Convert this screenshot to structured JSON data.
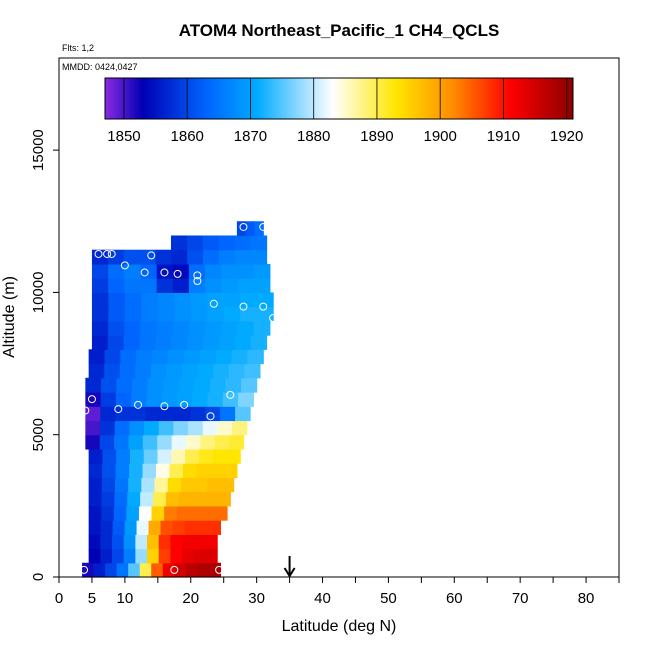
{
  "chart_data": {
    "type": "heatmap",
    "title": "ATOM4 Northeast_Pacific_1 CH4_QCLS",
    "annotations": {
      "flights": "Flts: 1,2",
      "dates": "MMDD: 0424,0427"
    },
    "xlabel": "Latitude (deg N)",
    "ylabel": "Altitude (m)",
    "xlim": [
      0,
      85
    ],
    "ylim": [
      0,
      18500
    ],
    "x_ticks_major": [
      "0",
      "5",
      "10",
      "20",
      "30",
      "40",
      "50",
      "60",
      "70",
      "80"
    ],
    "x_tick_values": [
      0,
      5,
      10,
      20,
      30,
      40,
      50,
      60,
      70,
      80
    ],
    "x_minor_ticks": [
      15,
      25,
      35,
      45,
      55,
      65,
      75,
      85
    ],
    "y_ticks": [
      "0",
      "5000",
      "10000",
      "15000"
    ],
    "y_tick_values": [
      0,
      5000,
      10000,
      15000
    ],
    "colorbar": {
      "min": 1847,
      "max": 1921,
      "labels": [
        "1850",
        "1860",
        "1870",
        "1880",
        "1890",
        "1900",
        "1910",
        "1920"
      ],
      "label_values": [
        1850,
        1860,
        1870,
        1880,
        1890,
        1900,
        1910,
        1920
      ],
      "colors": [
        "#8b2be2",
        "#0000b4",
        "#0064ff",
        "#00aaff",
        "#ffffff",
        "#ffe600",
        "#ff8c00",
        "#ff0000",
        "#8b0000"
      ],
      "color_values": [
        1847,
        1853,
        1863,
        1871,
        1883,
        1893,
        1902,
        1911,
        1921
      ]
    },
    "latitude_marker": {
      "lat": 35,
      "symbol": "down-arrow"
    },
    "curtain": {
      "rows": [
        {
          "alt": 250,
          "x0": 3.5,
          "x1": 24.5,
          "values": [
            1852,
            1856,
            1860,
            1865,
            1875,
            1890,
            1905,
            1912,
            1915,
            1917,
            1918,
            1918
          ]
        },
        {
          "alt": 750,
          "x0": 4.5,
          "x1": 24.0,
          "values": [
            1853,
            1856,
            1860,
            1866,
            1878,
            1895,
            1907,
            1911,
            1913,
            1914,
            1914
          ]
        },
        {
          "alt": 1250,
          "x0": 4.5,
          "x1": 24.0,
          "values": [
            1854,
            1857,
            1861,
            1868,
            1880,
            1897,
            1908,
            1911,
            1912,
            1912,
            1912
          ]
        },
        {
          "alt": 1750,
          "x0": 4.5,
          "x1": 24.5,
          "values": [
            1855,
            1857,
            1862,
            1869,
            1882,
            1899,
            1906,
            1907,
            1908,
            1908,
            1908
          ]
        },
        {
          "alt": 2250,
          "x0": 4.5,
          "x1": 25.5,
          "values": [
            1855,
            1858,
            1863,
            1870,
            1883,
            1895,
            1903,
            1904,
            1904,
            1904,
            1904
          ]
        },
        {
          "alt": 2750,
          "x0": 4.5,
          "x1": 26.0,
          "values": [
            1856,
            1859,
            1864,
            1871,
            1880,
            1890,
            1897,
            1898,
            1898,
            1898,
            1898
          ]
        },
        {
          "alt": 3250,
          "x0": 4.5,
          "x1": 26.5,
          "values": [
            1856,
            1860,
            1865,
            1872,
            1879,
            1887,
            1894,
            1896,
            1896,
            1897,
            1897
          ]
        },
        {
          "alt": 3750,
          "x0": 4.5,
          "x1": 27.0,
          "values": [
            1857,
            1861,
            1866,
            1872,
            1878,
            1884,
            1890,
            1894,
            1895,
            1895,
            1895
          ]
        },
        {
          "alt": 4250,
          "x0": 4.5,
          "x1": 27.5,
          "values": [
            1856,
            1861,
            1866,
            1872,
            1876,
            1881,
            1886,
            1890,
            1892,
            1893,
            1893
          ]
        },
        {
          "alt": 4750,
          "x0": 4.0,
          "x1": 28.0,
          "values": [
            1852,
            1860,
            1865,
            1870,
            1874,
            1878,
            1882,
            1885,
            1888,
            1890,
            1891
          ]
        },
        {
          "alt": 5250,
          "x0": 4.0,
          "x1": 28.5,
          "values": [
            1850,
            1858,
            1864,
            1868,
            1871,
            1874,
            1877,
            1879,
            1882,
            1885,
            1888
          ]
        },
        {
          "alt": 5750,
          "x0": 4.0,
          "x1": 29.0,
          "values": [
            1849,
            1857,
            1858,
            1858,
            1857,
            1857,
            1857,
            1858,
            1860,
            1865,
            1875
          ]
        },
        {
          "alt": 6250,
          "x0": 4.0,
          "x1": 29.5,
          "values": [
            1852,
            1859,
            1863,
            1866,
            1868,
            1869,
            1870,
            1871,
            1872,
            1874,
            1877
          ]
        },
        {
          "alt": 6750,
          "x0": 4.0,
          "x1": 30.0,
          "values": [
            1857,
            1861,
            1864,
            1866,
            1868,
            1869,
            1870,
            1871,
            1872,
            1873,
            1875
          ]
        },
        {
          "alt": 7250,
          "x0": 4.5,
          "x1": 30.5,
          "values": [
            1857,
            1861,
            1864,
            1866,
            1868,
            1869,
            1870,
            1871,
            1872,
            1873,
            1874
          ]
        },
        {
          "alt": 7750,
          "x0": 4.5,
          "x1": 31.0,
          "values": [
            1856,
            1860,
            1864,
            1866,
            1867,
            1868,
            1869,
            1870,
            1871,
            1872,
            1873
          ]
        },
        {
          "alt": 8250,
          "x0": 5.0,
          "x1": 31.5,
          "values": [
            1856,
            1860,
            1863,
            1865,
            1866,
            1867,
            1868,
            1869,
            1870,
            1871,
            1872
          ]
        },
        {
          "alt": 8750,
          "x0": 5.0,
          "x1": 32.0,
          "values": [
            1857,
            1861,
            1863,
            1865,
            1866,
            1867,
            1868,
            1869,
            1870,
            1871,
            1872
          ]
        },
        {
          "alt": 9250,
          "x0": 5.0,
          "x1": 32.5,
          "values": [
            1858,
            1862,
            1864,
            1866,
            1867,
            1868,
            1869,
            1870,
            1871,
            1872,
            1872
          ]
        },
        {
          "alt": 9750,
          "x0": 5.0,
          "x1": 32.5,
          "values": [
            1858,
            1862,
            1864,
            1866,
            1867,
            1868,
            1869,
            1870,
            1870,
            1871,
            1871
          ]
        },
        {
          "alt": 10250,
          "x0": 5.0,
          "x1": 32.0,
          "values": [
            1859,
            1863,
            1865,
            1865,
            1858,
            1856,
            1866,
            1868,
            1869,
            1870,
            1870
          ]
        },
        {
          "alt": 10750,
          "x0": 5.0,
          "x1": 32.0,
          "values": [
            1860,
            1864,
            1866,
            1863,
            1855,
            1854,
            1864,
            1867,
            1868,
            1868,
            1869
          ]
        },
        {
          "alt": 11250,
          "x0": 5.0,
          "x1": 31.5,
          "values": [
            1857,
            1859,
            1861,
            1861,
            1858,
            1857,
            1861,
            1864,
            1866,
            1867,
            1867
          ]
        },
        {
          "alt": 11750,
          "x0": 17.0,
          "x1": 31.5,
          "values": [
            1858,
            1860,
            1862,
            1863,
            1864,
            1865
          ]
        },
        {
          "alt": 12250,
          "x0": 27.0,
          "x1": 31.0,
          "values": [
            1860,
            1862,
            1864
          ]
        }
      ]
    },
    "samples": [
      {
        "lat": 3.8,
        "alt": 250
      },
      {
        "lat": 17.5,
        "alt": 250
      },
      {
        "lat": 24.3,
        "alt": 250
      },
      {
        "lat": 4.0,
        "alt": 5850
      },
      {
        "lat": 5.0,
        "alt": 6250
      },
      {
        "lat": 9.0,
        "alt": 5900
      },
      {
        "lat": 12.0,
        "alt": 6050
      },
      {
        "lat": 16.0,
        "alt": 6000
      },
      {
        "lat": 19.0,
        "alt": 6050
      },
      {
        "lat": 23.0,
        "alt": 5650
      },
      {
        "lat": 26.0,
        "alt": 6400
      },
      {
        "lat": 6.0,
        "alt": 11350
      },
      {
        "lat": 7.3,
        "alt": 11350
      },
      {
        "lat": 8.0,
        "alt": 11350
      },
      {
        "lat": 10.0,
        "alt": 10950
      },
      {
        "lat": 13.0,
        "alt": 10700
      },
      {
        "lat": 14.0,
        "alt": 11300
      },
      {
        "lat": 16.0,
        "alt": 10700
      },
      {
        "lat": 18.0,
        "alt": 10650
      },
      {
        "lat": 21.0,
        "alt": 10600
      },
      {
        "lat": 21.0,
        "alt": 10400
      },
      {
        "lat": 23.5,
        "alt": 9600
      },
      {
        "lat": 28.0,
        "alt": 9500
      },
      {
        "lat": 31.0,
        "alt": 9500
      },
      {
        "lat": 32.5,
        "alt": 9100
      },
      {
        "lat": 28.0,
        "alt": 12300
      },
      {
        "lat": 31.0,
        "alt": 12300
      }
    ]
  }
}
